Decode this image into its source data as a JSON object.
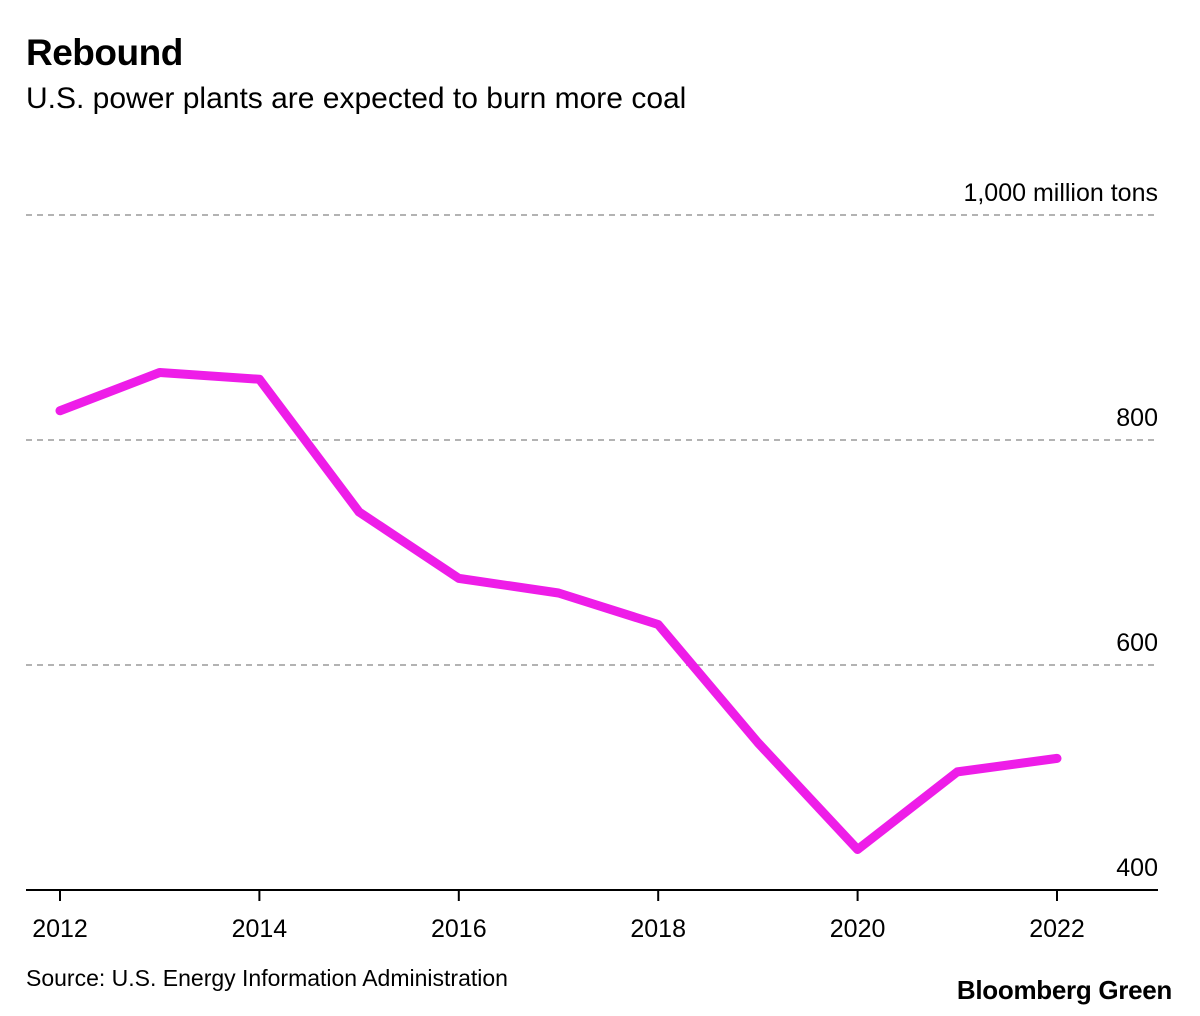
{
  "chart_data": {
    "type": "line",
    "title": "Rebound",
    "subtitle": "U.S. power plants are expected to burn more coal",
    "unit_label": "1,000 million tons",
    "x": [
      2012,
      2013,
      2014,
      2015,
      2016,
      2017,
      2018,
      2019,
      2020,
      2021,
      2022
    ],
    "x_ticks": [
      2012,
      2014,
      2016,
      2018,
      2020,
      2022
    ],
    "y_ticks": [
      400,
      600,
      800,
      1000
    ],
    "ylim": [
      400,
      1000
    ],
    "series": [
      {
        "name": "",
        "color": "#ee1de8",
        "values": [
          826,
          860,
          854,
          736,
          677,
          664,
          636,
          531,
          436,
          505,
          517
        ]
      }
    ],
    "grid": true,
    "y_axis_position": "right",
    "source": "Source: U.S. Energy Information Administration",
    "brand": "Bloomberg Green"
  }
}
